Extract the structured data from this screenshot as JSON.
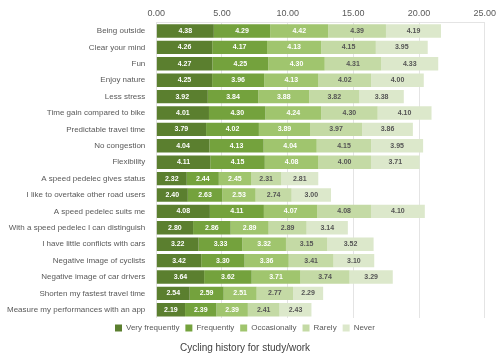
{
  "chart_data": {
    "type": "bar",
    "orientation": "horizontal",
    "stacked": true,
    "data_labels": true,
    "grid": true,
    "legend": "bottom",
    "title": "Cycling history for study/work",
    "categories": [
      "Being outside",
      "Clear your mind",
      "Fun",
      "Enjoy nature",
      "Less stress",
      "Time gain compared to bike",
      "Predictable travel time",
      "No congestion",
      "Flexibility",
      "A speed pedelec gives status",
      "I like to overtake other road users",
      "A speed pedelec suits me",
      "With a speed pedelec I can distinguish",
      "I have little conflicts with cars",
      "Negative image of cyclists",
      "Negative image of car drivers",
      "Shorten my fastest travel time",
      "Measure my performances with an app"
    ],
    "xlim": [
      0,
      25
    ],
    "xticks": [
      {
        "value": 0,
        "label": "0.00"
      },
      {
        "value": 5,
        "label": "5.00"
      },
      {
        "value": 10,
        "label": "10.00"
      },
      {
        "value": 15,
        "label": "15.00"
      },
      {
        "value": 20,
        "label": "20.00"
      },
      {
        "value": 25,
        "label": "25.00"
      }
    ],
    "series": [
      {
        "name": "Very frequently",
        "color": "#5b7f2f",
        "values": [
          4.38,
          4.26,
          4.27,
          4.25,
          3.92,
          4.01,
          3.79,
          4.04,
          4.11,
          2.32,
          2.4,
          4.08,
          2.8,
          3.22,
          3.42,
          3.64,
          2.54,
          2.19
        ],
        "value_labels": [
          "4.38",
          "4.26",
          "4.27",
          "4.25",
          "3.92",
          "4.01",
          "3.79",
          "4.04",
          "4.11",
          "2.32",
          "2.40",
          "4.08",
          "2.80",
          "3.22",
          "3.42",
          "3.64",
          "2.54",
          "2.19"
        ]
      },
      {
        "name": "Frequently",
        "color": "#74a23d",
        "values": [
          4.29,
          4.17,
          4.25,
          3.96,
          3.84,
          4.3,
          4.02,
          4.13,
          4.15,
          2.44,
          2.63,
          4.11,
          2.86,
          3.33,
          3.3,
          3.62,
          2.59,
          2.39
        ],
        "value_labels": [
          "4.29",
          "4.17",
          "4.25",
          "3.96",
          "3.84",
          "4.30",
          "4.02",
          "4.13",
          "4.15",
          "2.44",
          "2.63",
          "4.11",
          "2.86",
          "3.33",
          "3.30",
          "3.62",
          "2.59",
          "2.39"
        ]
      },
      {
        "name": "Occasionally",
        "color": "#a0c56e",
        "values": [
          4.42,
          4.13,
          4.3,
          4.13,
          3.88,
          4.24,
          3.89,
          4.04,
          4.08,
          2.45,
          2.53,
          4.07,
          2.89,
          3.32,
          3.36,
          3.71,
          2.51,
          2.39
        ],
        "value_labels": [
          "4.42",
          "4.13",
          "4.30",
          "4.13",
          "3.88",
          "4.24",
          "3.89",
          "4.04",
          "4.08",
          "2.45",
          "2.53",
          "4.07",
          "2.89",
          "3.32",
          "3.36",
          "3.71",
          "2.51",
          "2.39"
        ]
      },
      {
        "name": "Rarely",
        "color": "#c4daa5",
        "values": [
          4.39,
          4.15,
          4.31,
          4.02,
          3.82,
          4.3,
          3.97,
          4.15,
          4.0,
          2.31,
          2.74,
          4.08,
          2.89,
          3.15,
          3.41,
          3.74,
          2.77,
          2.41
        ],
        "value_labels": [
          "4.39",
          "4.15",
          "4.31",
          "4.02",
          "3.82",
          "4.30",
          "3.97",
          "4.15",
          "4.00",
          "2.31",
          "2.74",
          "4.08",
          "2.89",
          "3.15",
          "3.41",
          "3.74",
          "2.77",
          "2.41"
        ]
      },
      {
        "name": "Never",
        "color": "#dce8cb",
        "values": [
          4.19,
          3.95,
          4.33,
          4.0,
          3.38,
          4.1,
          3.86,
          3.95,
          3.71,
          2.81,
          3.0,
          4.1,
          3.14,
          3.52,
          3.1,
          3.29,
          2.29,
          2.43
        ],
        "value_labels": [
          "4.19",
          "3.95",
          "4.33",
          "4.00",
          "3.38",
          "4.10",
          "3.86",
          "3.95",
          "3.71",
          "2.81",
          "3.00",
          "4.10",
          "3.14",
          "3.52",
          "3.10",
          "3.29",
          "2.29",
          "2.43"
        ]
      }
    ]
  }
}
